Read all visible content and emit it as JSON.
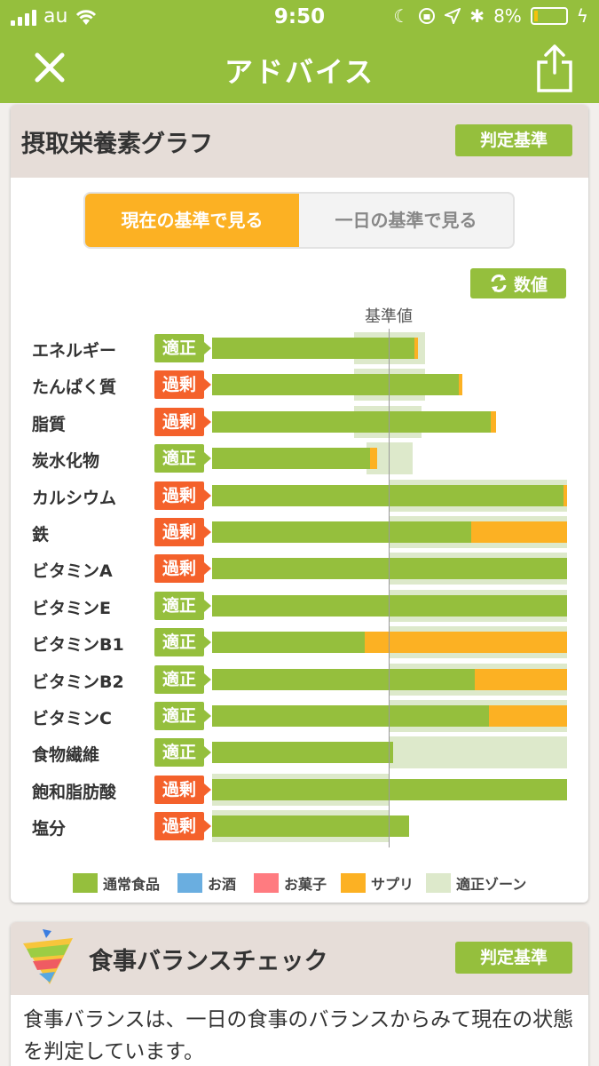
{
  "status_bar": {
    "carrier": "au",
    "time": "9:50",
    "battery": "8%"
  },
  "nav": {
    "title": "アドバイス"
  },
  "nutrient_card": {
    "title": "摂取栄養素グラフ",
    "criteria_label": "判定基準",
    "tabs": [
      {
        "label": "現在の基準で見る",
        "active": true
      },
      {
        "label": "一日の基準で見る",
        "active": false
      }
    ],
    "value_toggle_label": "数値",
    "reference_label": "基準値"
  },
  "colors": {
    "normal": "#95bf3d",
    "alcohol": "#6aaee0",
    "snack": "#ff7b80",
    "supplement": "#fcb123",
    "zone": "#dde9cb",
    "ok": "#95bf3d",
    "over": "#f4612b"
  },
  "chart_data": {
    "type": "bar",
    "orientation": "horizontal",
    "reference_value": 100,
    "xlim": [
      0,
      200
    ],
    "categories": [
      "エネルギー",
      "たんぱく質",
      "脂質",
      "炭水化物",
      "カルシウム",
      "鉄",
      "ビタミンA",
      "ビタミンE",
      "ビタミンB1",
      "ビタミンB2",
      "ビタミンC",
      "食物繊維",
      "飽和脂肪酸",
      "塩分"
    ],
    "status": [
      "適正",
      "過剰",
      "過剰",
      "適正",
      "過剰",
      "過剰",
      "過剰",
      "適正",
      "適正",
      "適正",
      "適正",
      "適正",
      "過剰",
      "過剰"
    ],
    "status_kind": [
      "ok",
      "over",
      "over",
      "ok",
      "over",
      "over",
      "over",
      "ok",
      "ok",
      "ok",
      "ok",
      "ok",
      "over",
      "over"
    ],
    "series": [
      {
        "name": "通常食品",
        "color": "#95bf3d",
        "values": [
          114,
          139,
          157,
          89,
          198,
          146,
          200,
          200,
          86,
          148,
          156,
          102,
          200,
          111
        ]
      },
      {
        "name": "お酒",
        "color": "#6aaee0",
        "values": [
          0,
          0,
          0,
          0,
          0,
          0,
          0,
          0,
          0,
          0,
          0,
          0,
          0,
          0
        ]
      },
      {
        "name": "お菓子",
        "color": "#ff7b80",
        "values": [
          0,
          0,
          0,
          0,
          0,
          0,
          0,
          0,
          0,
          0,
          0,
          0,
          0,
          0
        ]
      },
      {
        "name": "サプリ",
        "color": "#fcb123",
        "values": [
          2,
          2,
          3,
          4,
          2,
          54,
          0,
          0,
          114,
          52,
          44,
          0,
          0,
          0
        ]
      }
    ],
    "zone": [
      [
        80,
        120
      ],
      [
        80,
        120
      ],
      [
        80,
        118
      ],
      [
        87,
        113
      ],
      [
        100,
        200
      ],
      [
        100,
        200
      ],
      [
        100,
        200
      ],
      [
        100,
        200
      ],
      [
        100,
        200
      ],
      [
        100,
        200
      ],
      [
        100,
        200
      ],
      [
        100,
        200
      ],
      [
        0,
        100
      ],
      [
        0,
        100
      ]
    ],
    "legend": [
      "通常食品",
      "お酒",
      "お菓子",
      "サプリ",
      "適正ゾーン"
    ]
  },
  "balance_card": {
    "title": "食事バランスチェック",
    "criteria_label": "判定基準",
    "description": "食事バランスは、一日の食事のバランスからみて現在の状態を判定しています。"
  }
}
